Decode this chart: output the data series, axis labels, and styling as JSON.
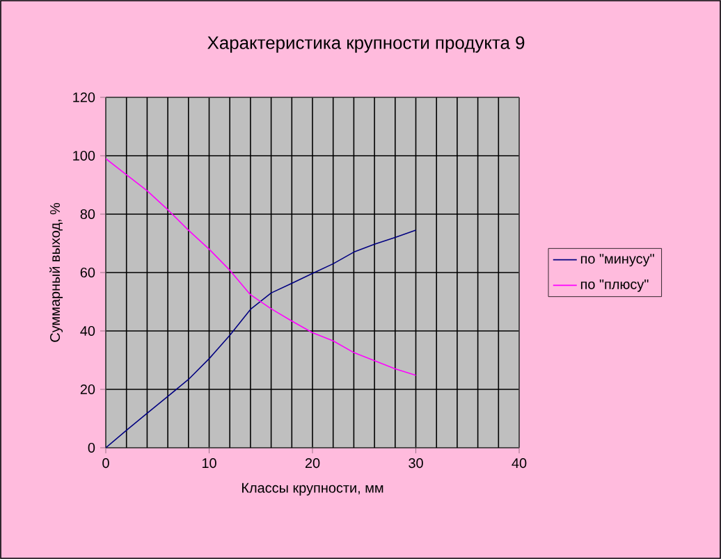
{
  "chart_data": {
    "type": "line",
    "title": "Характеристика крупности продукта 9",
    "xlabel": "Классы крупности, мм",
    "ylabel": "Суммарный выход,  %",
    "x": [
      0,
      2,
      4,
      6,
      8,
      10,
      12,
      14,
      16,
      18,
      20,
      22,
      24,
      26,
      28,
      30
    ],
    "series": [
      {
        "name": "по \"минусу\"",
        "color": "#000080",
        "values": [
          0,
          6,
          11.8,
          17.6,
          23.4,
          30.5,
          38.5,
          47.4,
          53,
          56.3,
          59.7,
          63,
          67,
          69.7,
          72,
          74.5
        ]
      },
      {
        "name": "по \"плюсу\"",
        "color": "#ff00ff",
        "values": [
          99,
          93.5,
          88,
          81.5,
          74.5,
          68,
          60.8,
          52.4,
          47.6,
          43.4,
          39.4,
          36.6,
          32.6,
          29.8,
          27,
          24.8
        ]
      }
    ],
    "xlim": [
      0,
      40
    ],
    "ylim": [
      0,
      120
    ],
    "xticks": [
      0,
      {
        "value": 2,
        "label": null
      },
      {
        "value": 4,
        "label": null
      },
      {
        "value": 6,
        "label": null
      },
      {
        "value": 8,
        "label": null
      },
      10,
      {
        "value": 12,
        "label": null
      },
      {
        "value": 14,
        "label": null
      },
      {
        "value": 16,
        "label": null
      },
      {
        "value": 18,
        "label": null
      },
      20,
      {
        "value": 22,
        "label": null
      },
      {
        "value": 24,
        "label": null
      },
      {
        "value": 26,
        "label": null
      },
      {
        "value": 28,
        "label": null
      },
      30,
      {
        "value": 32,
        "label": null
      },
      {
        "value": 34,
        "label": null
      },
      {
        "value": 36,
        "label": null
      },
      {
        "value": 38,
        "label": null
      },
      40
    ],
    "yticks": [
      0,
      20,
      40,
      60,
      80,
      100,
      120
    ],
    "grid": true,
    "legend": "right",
    "marker": "none",
    "line_style": "solid"
  }
}
